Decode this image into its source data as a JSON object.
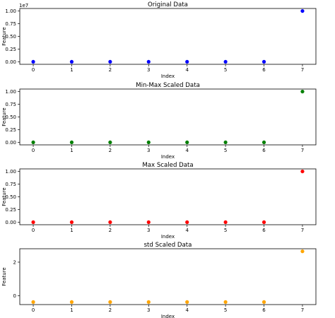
{
  "chart_data": [
    {
      "type": "scatter",
      "title": "Original Data",
      "xlabel": "Index",
      "ylabel": "Feature",
      "offset_label": "1e7",
      "x": [
        0,
        1,
        2,
        3,
        4,
        5,
        6,
        7
      ],
      "y": [
        1,
        2,
        3,
        4,
        5,
        6,
        7,
        100000000
      ],
      "color": "#0000ff",
      "xticks": [
        0,
        1,
        2,
        3,
        4,
        5,
        6,
        7
      ],
      "yticks": [
        0,
        25000000,
        50000000,
        75000000,
        100000000
      ],
      "ytick_labels": [
        "0.00",
        "0.25",
        "0.50",
        "0.75",
        "1.00"
      ],
      "xlim": [
        -0.35,
        7.35
      ],
      "ylim": [
        -5000000,
        105000000
      ]
    },
    {
      "type": "scatter",
      "title": "Min-Max Scaled Data",
      "xlabel": "Index",
      "ylabel": "Feature",
      "x": [
        0,
        1,
        2,
        3,
        4,
        5,
        6,
        7
      ],
      "y": [
        0,
        1e-08,
        2e-08,
        3e-08,
        4e-08,
        5e-08,
        6e-08,
        1.0
      ],
      "color": "#008000",
      "xticks": [
        0,
        1,
        2,
        3,
        4,
        5,
        6,
        7
      ],
      "yticks": [
        0,
        0.25,
        0.5,
        0.75,
        1.0
      ],
      "ytick_labels": [
        "0.00",
        "0.25",
        "0.50",
        "0.75",
        "1.00"
      ],
      "xlim": [
        -0.35,
        7.35
      ],
      "ylim": [
        -0.05,
        1.05
      ]
    },
    {
      "type": "scatter",
      "title": "Max Scaled Data",
      "xlabel": "Index",
      "ylabel": "Feature",
      "x": [
        0,
        1,
        2,
        3,
        4,
        5,
        6,
        7
      ],
      "y": [
        1e-08,
        2e-08,
        3e-08,
        4e-08,
        5e-08,
        6e-08,
        7e-08,
        1.0
      ],
      "color": "#ff0000",
      "xticks": [
        0,
        1,
        2,
        3,
        4,
        5,
        6,
        7
      ],
      "yticks": [
        0,
        0.25,
        0.5,
        0.75,
        1.0
      ],
      "ytick_labels": [
        "0.00",
        "0.25",
        "0.50",
        "0.75",
        "1.00"
      ],
      "xlim": [
        -0.35,
        7.35
      ],
      "ylim": [
        -0.05,
        1.05
      ]
    },
    {
      "type": "scatter",
      "title": "std Scaled Data",
      "xlabel": "Index",
      "ylabel": "Feature",
      "x": [
        0,
        1,
        2,
        3,
        4,
        5,
        6,
        7
      ],
      "y": [
        -0.378,
        -0.378,
        -0.378,
        -0.378,
        -0.378,
        -0.378,
        -0.378,
        2.646
      ],
      "color": "#ffa500",
      "xticks": [
        0,
        1,
        2,
        3,
        4,
        5,
        6,
        7
      ],
      "yticks": [
        0,
        2
      ],
      "ytick_labels": [
        "0",
        "2"
      ],
      "xlim": [
        -0.35,
        7.35
      ],
      "ylim": [
        -0.53,
        2.8
      ]
    }
  ]
}
